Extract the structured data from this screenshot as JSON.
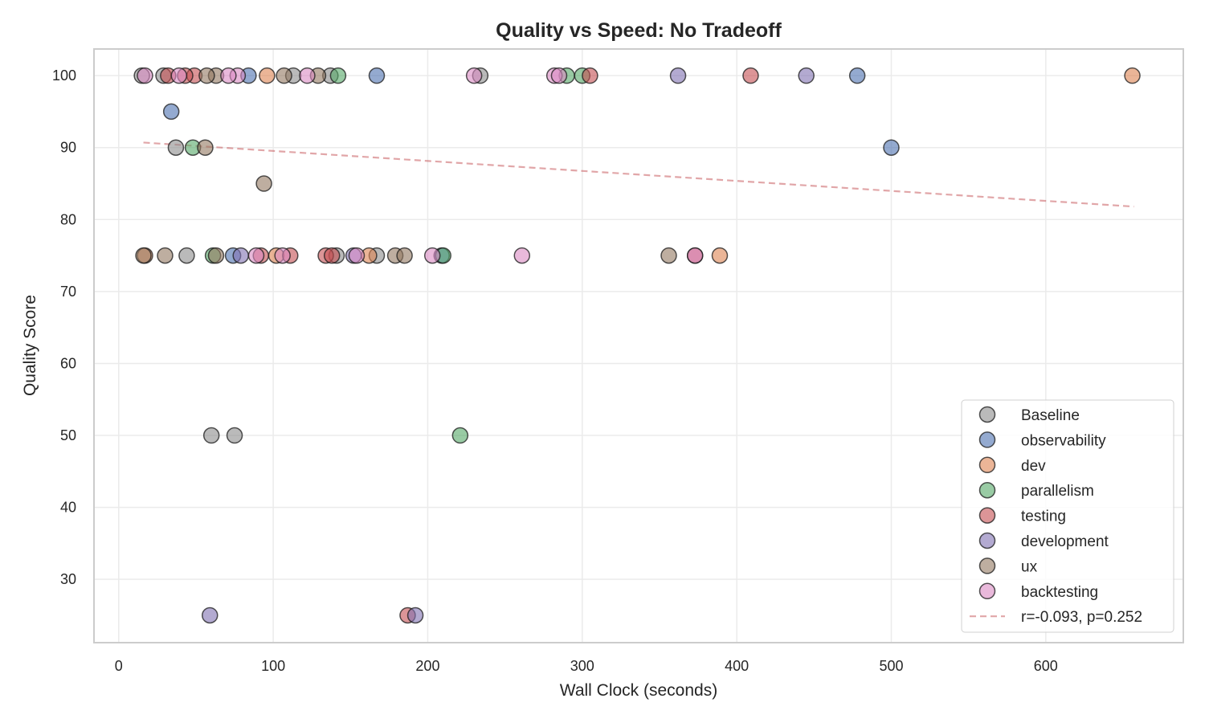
{
  "chart_data": {
    "type": "scatter",
    "title": "Quality vs Speed: No Tradeoff",
    "xlabel": "Wall Clock (seconds)",
    "ylabel": "Quality Score",
    "xlim": [
      -16,
      689
    ],
    "ylim": [
      21.2,
      103.7
    ],
    "xticks": [
      0,
      100,
      200,
      300,
      400,
      500,
      600
    ],
    "yticks": [
      30,
      40,
      50,
      60,
      70,
      80,
      90,
      100
    ],
    "grid": true,
    "legend_position": "lower-right",
    "series": [
      {
        "name": "Baseline",
        "color": "#8c8c8c",
        "points": [
          [
            234,
            100
          ],
          [
            137,
            100
          ],
          [
            113,
            100
          ],
          [
            29,
            100
          ],
          [
            15,
            100
          ],
          [
            37,
            90
          ],
          [
            44,
            75
          ],
          [
            141,
            75
          ],
          [
            167,
            75
          ],
          [
            60,
            50
          ],
          [
            75,
            50
          ]
        ]
      },
      {
        "name": "observability",
        "color": "#4c72b0",
        "points": [
          [
            167,
            100
          ],
          [
            478,
            100
          ],
          [
            84,
            100
          ],
          [
            34,
            95
          ],
          [
            500,
            90
          ],
          [
            74,
            75
          ],
          [
            209,
            75
          ]
        ]
      },
      {
        "name": "dev",
        "color": "#dd8452",
        "points": [
          [
            656,
            100
          ],
          [
            96,
            100
          ],
          [
            17,
            75
          ],
          [
            102,
            75
          ],
          [
            162,
            75
          ],
          [
            389,
            75
          ]
        ]
      },
      {
        "name": "parallelism",
        "color": "#55a868",
        "points": [
          [
            290,
            100
          ],
          [
            300,
            100
          ],
          [
            142,
            100
          ],
          [
            48,
            90
          ],
          [
            61,
            75
          ],
          [
            210,
            75
          ],
          [
            221,
            50
          ]
        ]
      },
      {
        "name": "testing",
        "color": "#c44e52",
        "points": [
          [
            305,
            100
          ],
          [
            409,
            100
          ],
          [
            49,
            100
          ],
          [
            43,
            100
          ],
          [
            32,
            100
          ],
          [
            92,
            75
          ],
          [
            111,
            75
          ],
          [
            134,
            75
          ],
          [
            138,
            75
          ],
          [
            373,
            75
          ],
          [
            187,
            25
          ]
        ]
      },
      {
        "name": "development",
        "color": "#8172b3",
        "points": [
          [
            362,
            100
          ],
          [
            445,
            100
          ],
          [
            79,
            75
          ],
          [
            152,
            75
          ],
          [
            59,
            25
          ],
          [
            192,
            25
          ]
        ]
      },
      {
        "name": "ux",
        "color": "#937860",
        "points": [
          [
            129,
            100
          ],
          [
            107,
            100
          ],
          [
            63,
            100
          ],
          [
            57,
            100
          ],
          [
            56,
            90
          ],
          [
            94,
            85
          ],
          [
            16,
            75
          ],
          [
            30,
            75
          ],
          [
            63,
            75
          ],
          [
            179,
            75
          ],
          [
            185,
            75
          ],
          [
            356,
            75
          ]
        ]
      },
      {
        "name": "backtesting",
        "color": "#da8bc3",
        "points": [
          [
            230,
            100
          ],
          [
            282,
            100
          ],
          [
            285,
            100
          ],
          [
            122,
            100
          ],
          [
            77,
            100
          ],
          [
            71,
            100
          ],
          [
            39,
            100
          ],
          [
            17,
            100
          ],
          [
            89,
            75
          ],
          [
            106,
            75
          ],
          [
            154,
            75
          ],
          [
            203,
            75
          ],
          [
            261,
            75
          ],
          [
            373,
            75
          ]
        ]
      }
    ],
    "trendline": {
      "label": "r=-0.093, p=0.252",
      "color": "#c44e52",
      "x": [
        16,
        657
      ],
      "y": [
        90.7,
        81.8
      ]
    }
  }
}
